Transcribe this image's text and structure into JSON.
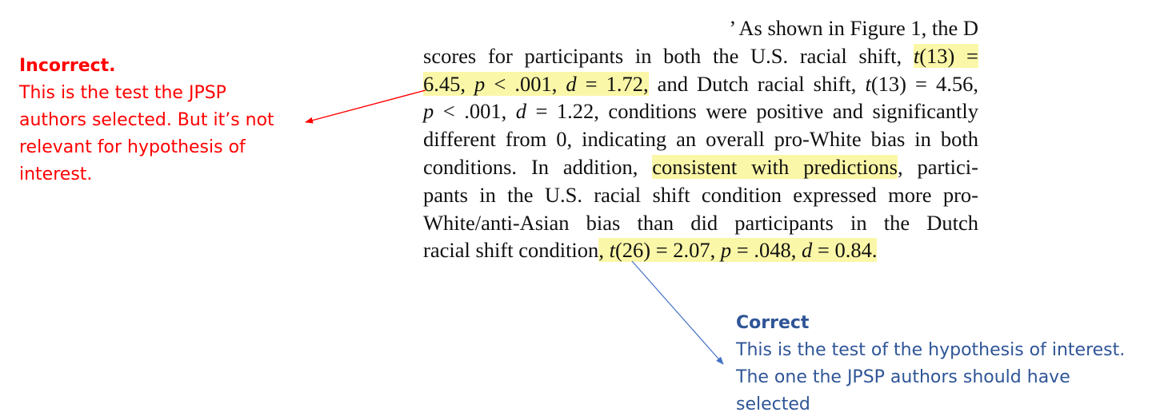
{
  "note_incorrect": {
    "title": "Incorrect.",
    "lines": [
      "This is the test the JPSP",
      "authors selected. But it’s not",
      "relevant for hypothesis of",
      "interest."
    ],
    "color": "#ff0000"
  },
  "note_correct": {
    "title": "Correct",
    "lines": [
      "This is the test of the hypothesis of interest.",
      "The one the JPSP authors should have",
      "selected"
    ],
    "color": "#2f5597"
  },
  "excerpt": {
    "line1": "’ As shown in Figure 1, the D",
    "line2a": "scores for participants in both the U.S. racial shift, ",
    "line2b_t": "t",
    "line2b": "(13) =",
    "line3a": "6.45, ",
    "line3a_p": "p",
    "line3b": " < .001, ",
    "line3b_d": "d",
    "line3c": " = 1.72,",
    "line3d": " and Dutch racial shift, ",
    "line3d_t": "t",
    "line3e": "(13) = 4.56,",
    "line4a_p": "p",
    "line4b": " < .001, ",
    "line4b_d": "d",
    "line4c": " = 1.22, conditions were positive and significantly",
    "line5": "different from 0, indicating an overall pro-White bias in both",
    "line6a": "conditions. In addition, ",
    "line6b": "consistent with predictions",
    "line6c": ", partici-",
    "line7": "pants in the U.S. racial shift condition expressed more pro-",
    "line8": "White/anti-Asian bias than did participants in the Dutch",
    "line9a": "racial shift condition",
    "line9b": ", ",
    "line9b_t": "t",
    "line9c": "(26) = 2.07, ",
    "line9c_p": "p",
    "line9d": " = .048, ",
    "line9d_d": "d",
    "line9e": " = 0.84.",
    "highlight_color": "#fbf7a8"
  },
  "arrows": {
    "incorrect_color": "#ff0000",
    "correct_color": "#4472c4"
  }
}
